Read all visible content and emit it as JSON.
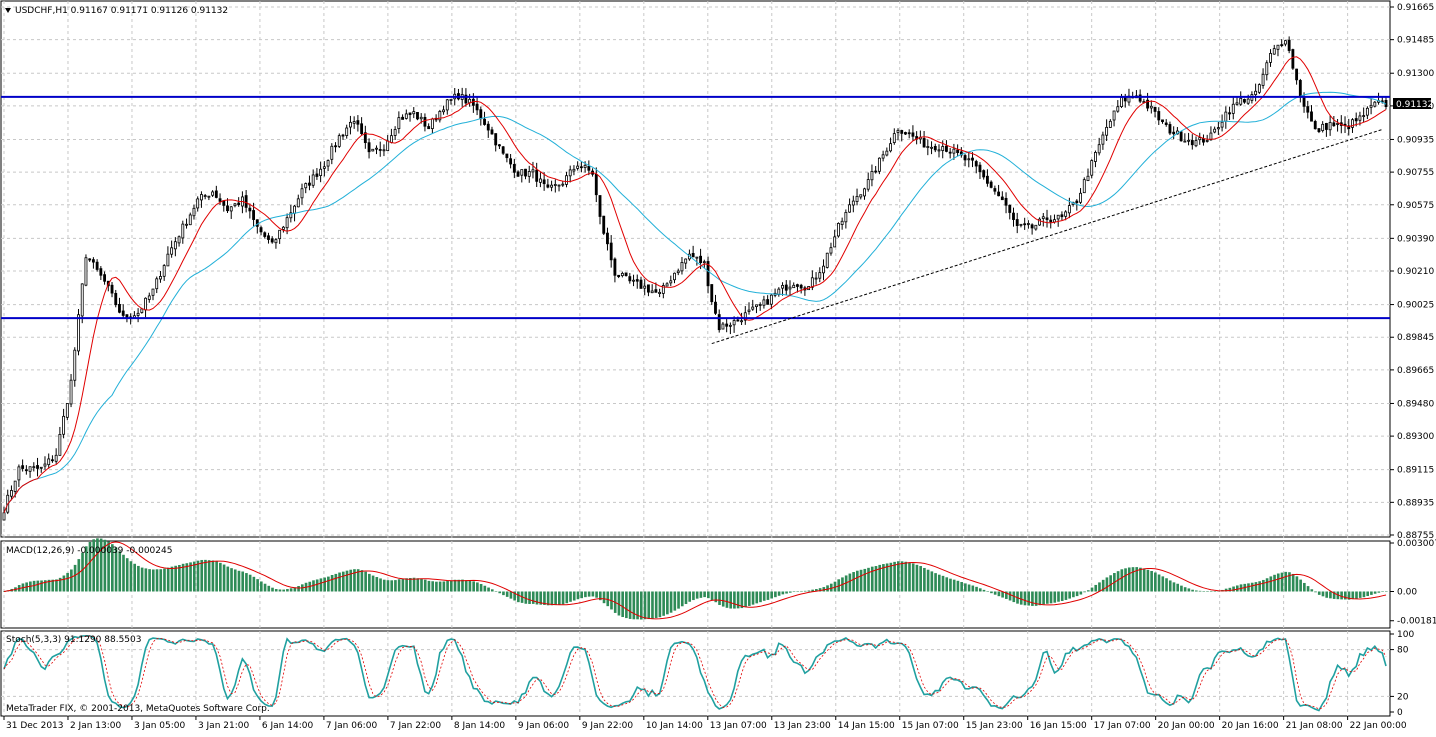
{
  "symbol_header": "USDCHF,H1  0.91167 0.91171 0.91126 0.91132",
  "current_price_label": "0.91132",
  "copyright": "MetaTrader FIX, © 2001-2013, MetaQuotes Software Corp.",
  "colors": {
    "bull": "#000000",
    "bear": "#000000",
    "ma_fast": "#e00000",
    "ma_slow": "#22b0d8",
    "level": "#0000c8",
    "macd_hist": "#2e8b57",
    "macd_signal": "#e00000",
    "stoch_main": "#20a0a0",
    "stoch_signal": "#e00000"
  },
  "chart_data": [
    {
      "type": "candlestick",
      "panel": "price",
      "ylim": [
        0.88755,
        0.91665
      ],
      "yticks": [
        "0.91665",
        "0.91485",
        "0.91300",
        "0.91120",
        "0.90935",
        "0.90755",
        "0.90575",
        "0.90390",
        "0.90210",
        "0.90025",
        "0.89845",
        "0.89665",
        "0.89480",
        "0.89300",
        "0.89115",
        "0.88935",
        "0.88755"
      ],
      "xticks": [
        "31 Dec 2013",
        "2 Jan 13:00",
        "3 Jan 05:00",
        "3 Jan 21:00",
        "6 Jan 14:00",
        "7 Jan 06:00",
        "7 Jan 22:00",
        "8 Jan 14:00",
        "9 Jan 06:00",
        "9 Jan 22:00",
        "10 Jan 14:00",
        "13 Jan 07:00",
        "13 Jan 23:00",
        "14 Jan 15:00",
        "15 Jan 07:00",
        "15 Jan 23:00",
        "16 Jan 15:00",
        "17 Jan 07:00",
        "20 Jan 00:00",
        "20 Jan 16:00",
        "21 Jan 08:00",
        "22 Jan 00:00"
      ],
      "anchors": [
        [
          0,
          0.889
        ],
        [
          4,
          0.8912
        ],
        [
          10,
          0.8912
        ],
        [
          14,
          0.892
        ],
        [
          18,
          0.896
        ],
        [
          22,
          0.903
        ],
        [
          27,
          0.9015
        ],
        [
          32,
          0.8995
        ],
        [
          36,
          0.8998
        ],
        [
          40,
          0.901
        ],
        [
          44,
          0.903
        ],
        [
          48,
          0.9045
        ],
        [
          52,
          0.906
        ],
        [
          56,
          0.9065
        ],
        [
          60,
          0.9055
        ],
        [
          64,
          0.906
        ],
        [
          68,
          0.9045
        ],
        [
          72,
          0.9035
        ],
        [
          76,
          0.905
        ],
        [
          80,
          0.9065
        ],
        [
          86,
          0.908
        ],
        [
          90,
          0.9095
        ],
        [
          94,
          0.9105
        ],
        [
          98,
          0.9085
        ],
        [
          102,
          0.909
        ],
        [
          106,
          0.9105
        ],
        [
          110,
          0.9108
        ],
        [
          114,
          0.91
        ],
        [
          118,
          0.9112
        ],
        [
          122,
          0.9118
        ],
        [
          126,
          0.9112
        ],
        [
          130,
          0.91
        ],
        [
          134,
          0.9085
        ],
        [
          138,
          0.9075
        ],
        [
          142,
          0.9075
        ],
        [
          146,
          0.9065
        ],
        [
          150,
          0.907
        ],
        [
          154,
          0.908
        ],
        [
          158,
          0.9075
        ],
        [
          160,
          0.905
        ],
        [
          164,
          0.902
        ],
        [
          168,
          0.9015
        ],
        [
          172,
          0.9012
        ],
        [
          176,
          0.9008
        ],
        [
          180,
          0.902
        ],
        [
          184,
          0.903
        ],
        [
          188,
          0.9025
        ],
        [
          190,
          0.9005
        ],
        [
          192,
          0.899
        ],
        [
          196,
          0.8993
        ],
        [
          200,
          0.8998
        ],
        [
          204,
          0.9003
        ],
        [
          208,
          0.901
        ],
        [
          212,
          0.9015
        ],
        [
          216,
          0.9012
        ],
        [
          220,
          0.9025
        ],
        [
          224,
          0.9045
        ],
        [
          228,
          0.906
        ],
        [
          232,
          0.907
        ],
        [
          236,
          0.9085
        ],
        [
          240,
          0.91
        ],
        [
          244,
          0.9095
        ],
        [
          248,
          0.909
        ],
        [
          252,
          0.909
        ],
        [
          256,
          0.9085
        ],
        [
          260,
          0.908
        ],
        [
          264,
          0.907
        ],
        [
          268,
          0.906
        ],
        [
          272,
          0.9045
        ],
        [
          276,
          0.9045
        ],
        [
          280,
          0.905
        ],
        [
          284,
          0.905
        ],
        [
          288,
          0.906
        ],
        [
          292,
          0.908
        ],
        [
          296,
          0.91
        ],
        [
          300,
          0.9115
        ],
        [
          304,
          0.9118
        ],
        [
          308,
          0.911
        ],
        [
          312,
          0.91
        ],
        [
          316,
          0.9095
        ],
        [
          320,
          0.9092
        ],
        [
          324,
          0.9095
        ],
        [
          328,
          0.9108
        ],
        [
          332,
          0.9115
        ],
        [
          336,
          0.9118
        ],
        [
          340,
          0.914
        ],
        [
          344,
          0.915
        ],
        [
          348,
          0.9118
        ],
        [
          352,
          0.9098
        ],
        [
          356,
          0.9102
        ],
        [
          360,
          0.91
        ],
        [
          364,
          0.9105
        ],
        [
          368,
          0.9113
        ]
      ],
      "hlines": [
        0.9117,
        0.8995
      ],
      "trendline": [
        [
          190,
          0.8981
        ],
        [
          370,
          0.9099
        ]
      ],
      "ma_fast_period": 10,
      "ma_slow_period": 30
    },
    {
      "type": "histogram",
      "panel": "macd",
      "title": "MACD(12,26,9) -0.000039 -0.000245",
      "ylim": [
        -0.00214,
        0.003007
      ],
      "yticks": [
        "0.003007",
        "0.00",
        "-0.001814"
      ]
    },
    {
      "type": "line",
      "panel": "stochastic",
      "title": "Stoch(5,3,3) 91.1290 88.5503",
      "ylim": [
        0,
        100
      ],
      "yticks": [
        "100",
        "80",
        "20",
        "0"
      ]
    }
  ]
}
